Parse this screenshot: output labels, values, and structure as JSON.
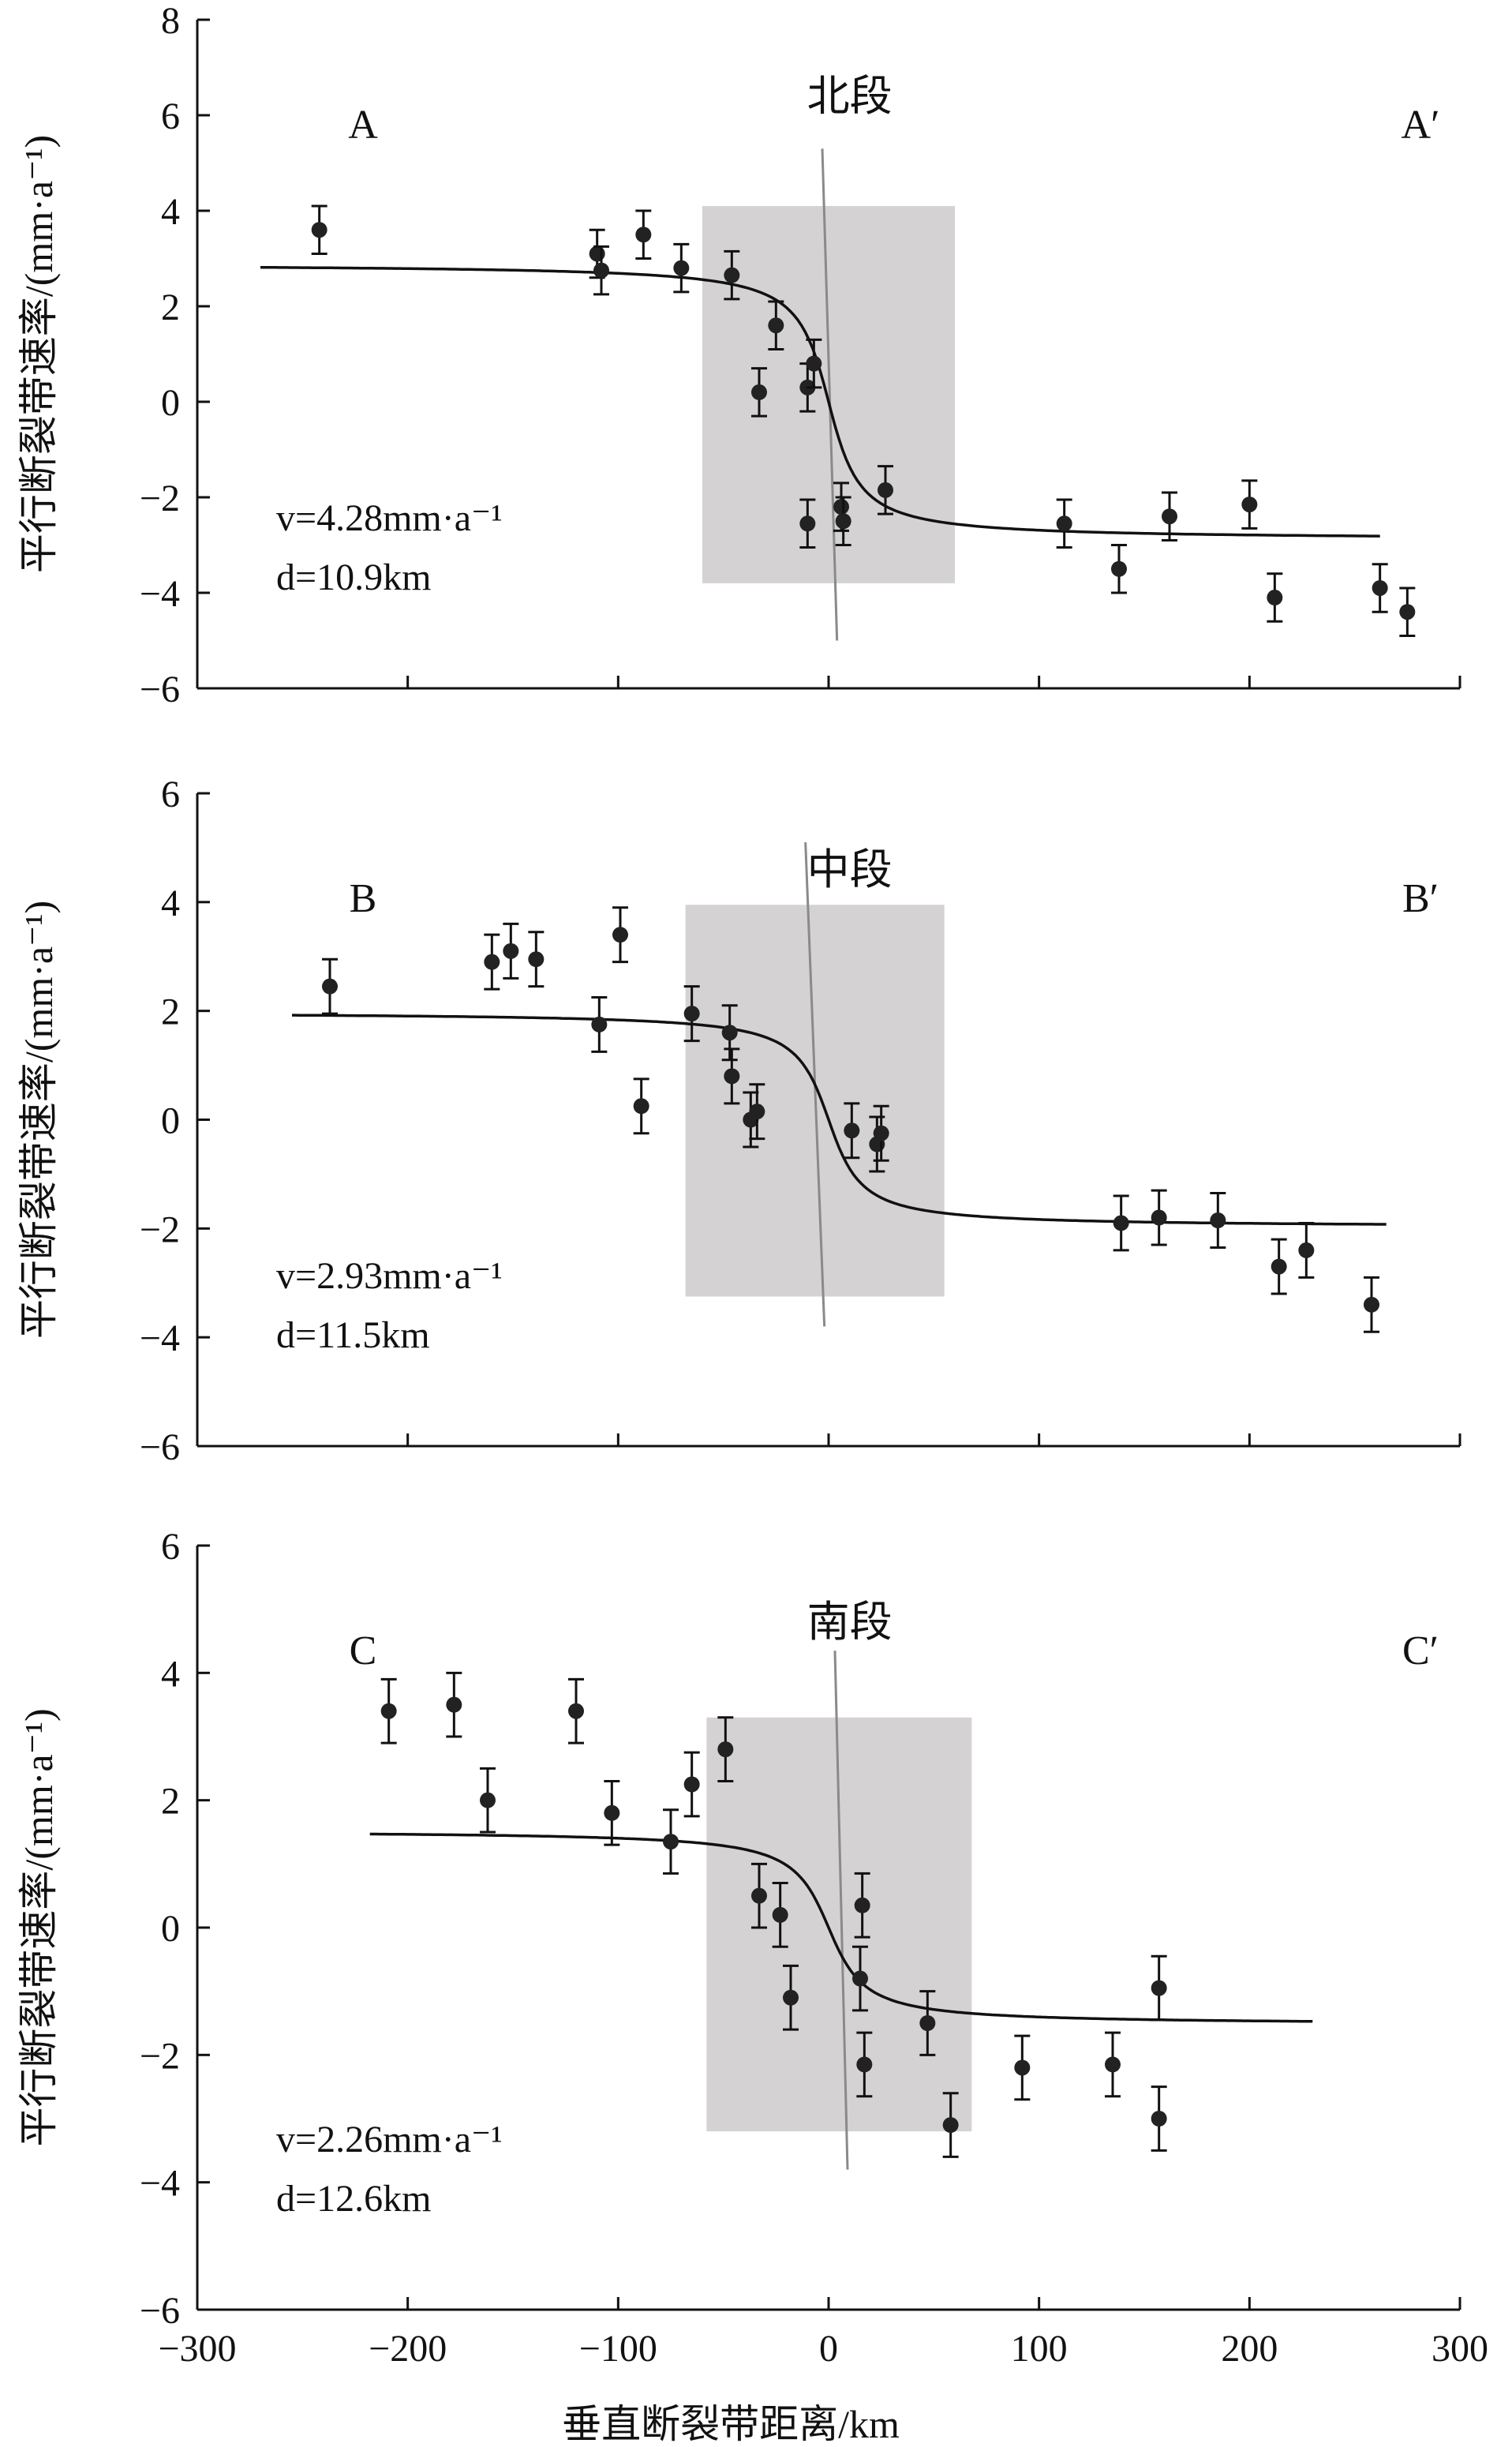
{
  "figure": {
    "xlabel": "垂直断裂带距离/km"
  },
  "chart_data": [
    {
      "type": "scatter",
      "segment": "北段",
      "left_label": "A",
      "right_label": "A′",
      "ylabel": "平行断裂带速率/(mm·a⁻¹)",
      "ylim": [
        -6,
        8
      ],
      "yticks": [
        8,
        6,
        4,
        2,
        0,
        -2,
        -4,
        -6
      ],
      "xlim": [
        -300,
        300
      ],
      "x_tick_labels": false,
      "fit": {
        "v": 4.28,
        "d": 10.9,
        "offset": 0,
        "x_range": [
          -270,
          262
        ],
        "v_text": "v=4.28mm·a⁻¹",
        "d_text": "d=10.9km"
      },
      "shaded_x": [
        -60,
        60
      ],
      "shaded_y": [
        -3.8,
        4.1
      ],
      "fault_line": [
        [
          -3,
          5.3
        ],
        [
          4,
          -5.0
        ]
      ],
      "points": [
        {
          "x": -242,
          "y": 3.6,
          "err": 0.5
        },
        {
          "x": -110,
          "y": 3.1,
          "err": 0.5
        },
        {
          "x": -108,
          "y": 2.75,
          "err": 0.5
        },
        {
          "x": -88,
          "y": 3.5,
          "err": 0.5
        },
        {
          "x": -70,
          "y": 2.8,
          "err": 0.5
        },
        {
          "x": -46,
          "y": 2.65,
          "err": 0.5
        },
        {
          "x": -25,
          "y": 1.6,
          "err": 0.5
        },
        {
          "x": -33,
          "y": 0.2,
          "err": 0.5
        },
        {
          "x": -10,
          "y": 0.3,
          "err": 0.5
        },
        {
          "x": -7,
          "y": 0.8,
          "err": 0.5
        },
        {
          "x": -10,
          "y": -2.55,
          "err": 0.5
        },
        {
          "x": 6,
          "y": -2.2,
          "err": 0.5
        },
        {
          "x": 7,
          "y": -2.5,
          "err": 0.5
        },
        {
          "x": 27,
          "y": -1.85,
          "err": 0.5
        },
        {
          "x": 112,
          "y": -2.55,
          "err": 0.5
        },
        {
          "x": 138,
          "y": -3.5,
          "err": 0.5
        },
        {
          "x": 162,
          "y": -2.4,
          "err": 0.5
        },
        {
          "x": 200,
          "y": -2.15,
          "err": 0.5
        },
        {
          "x": 212,
          "y": -4.1,
          "err": 0.5
        },
        {
          "x": 262,
          "y": -3.9,
          "err": 0.5
        },
        {
          "x": 275,
          "y": -4.4,
          "err": 0.5
        }
      ]
    },
    {
      "type": "scatter",
      "segment": "中段",
      "left_label": "B",
      "right_label": "B′",
      "ylabel": "平行断裂带速率/(mm·a⁻¹)",
      "ylim": [
        -6,
        6
      ],
      "yticks": [
        6,
        4,
        2,
        0,
        -2,
        -4,
        -6
      ],
      "xlim": [
        -300,
        300
      ],
      "x_tick_labels": false,
      "fit": {
        "v": 2.93,
        "d": 11.5,
        "offset": 0,
        "x_range": [
          -255,
          265
        ],
        "v_text": "v=2.93mm·a⁻¹",
        "d_text": "d=11.5km"
      },
      "shaded_x": [
        -68,
        55
      ],
      "shaded_y": [
        -3.25,
        3.95
      ],
      "fault_line": [
        [
          -11,
          5.1
        ],
        [
          -2,
          -3.8
        ]
      ],
      "points": [
        {
          "x": -237,
          "y": 2.45,
          "err": 0.5
        },
        {
          "x": -160,
          "y": 2.9,
          "err": 0.5
        },
        {
          "x": -151,
          "y": 3.1,
          "err": 0.5
        },
        {
          "x": -139,
          "y": 2.95,
          "err": 0.5
        },
        {
          "x": -109,
          "y": 1.75,
          "err": 0.5
        },
        {
          "x": -99,
          "y": 3.4,
          "err": 0.5
        },
        {
          "x": -89,
          "y": 0.25,
          "err": 0.5
        },
        {
          "x": -65,
          "y": 1.95,
          "err": 0.5
        },
        {
          "x": -47,
          "y": 1.6,
          "err": 0.5
        },
        {
          "x": -46,
          "y": 0.8,
          "err": 0.5
        },
        {
          "x": -37,
          "y": 0.0,
          "err": 0.5
        },
        {
          "x": -34,
          "y": 0.15,
          "err": 0.5
        },
        {
          "x": 11,
          "y": -0.2,
          "err": 0.5
        },
        {
          "x": 23,
          "y": -0.45,
          "err": 0.5
        },
        {
          "x": 25,
          "y": -0.25,
          "err": 0.5
        },
        {
          "x": 139,
          "y": -1.9,
          "err": 0.5
        },
        {
          "x": 157,
          "y": -1.8,
          "err": 0.5
        },
        {
          "x": 185,
          "y": -1.85,
          "err": 0.5
        },
        {
          "x": 214,
          "y": -2.7,
          "err": 0.5
        },
        {
          "x": 227,
          "y": -2.4,
          "err": 0.5
        },
        {
          "x": 258,
          "y": -3.4,
          "err": 0.5
        }
      ]
    },
    {
      "type": "scatter",
      "segment": "南段",
      "left_label": "C",
      "right_label": "C′",
      "ylabel": "平行断裂带速率/(mm·a⁻¹)",
      "ylim": [
        -6,
        6
      ],
      "yticks": [
        6,
        4,
        2,
        0,
        -2,
        -4,
        -6
      ],
      "xlim": [
        -300,
        300
      ],
      "x_tick_labels": true,
      "xticks": [
        -300,
        -200,
        -100,
        0,
        100,
        200,
        300
      ],
      "xtick_text": [
        "−300",
        "−200",
        "−100",
        "0",
        "100",
        "200",
        "300"
      ],
      "fit": {
        "v": 2.26,
        "d": 12.6,
        "offset": 0,
        "x_range": [
          -218,
          230
        ],
        "v_text": "v=2.26mm·a⁻¹",
        "d_text": "d=12.6km"
      },
      "shaded_x": [
        -58,
        68
      ],
      "shaded_y": [
        -3.2,
        3.3
      ],
      "fault_line": [
        [
          3,
          4.35
        ],
        [
          9,
          -3.8
        ]
      ],
      "points": [
        {
          "x": -209,
          "y": 3.4,
          "err": 0.5
        },
        {
          "x": -178,
          "y": 3.5,
          "err": 0.5
        },
        {
          "x": -162,
          "y": 2.0,
          "err": 0.5
        },
        {
          "x": -120,
          "y": 3.4,
          "err": 0.5
        },
        {
          "x": -103,
          "y": 1.8,
          "err": 0.5
        },
        {
          "x": -75,
          "y": 1.35,
          "err": 0.5
        },
        {
          "x": -65,
          "y": 2.25,
          "err": 0.5
        },
        {
          "x": -49,
          "y": 2.8,
          "err": 0.5
        },
        {
          "x": -33,
          "y": 0.5,
          "err": 0.5
        },
        {
          "x": -23,
          "y": 0.2,
          "err": 0.5
        },
        {
          "x": -18,
          "y": -1.1,
          "err": 0.5
        },
        {
          "x": 16,
          "y": 0.35,
          "err": 0.5
        },
        {
          "x": 15,
          "y": -0.8,
          "err": 0.5
        },
        {
          "x": 17,
          "y": -2.15,
          "err": 0.5
        },
        {
          "x": 47,
          "y": -1.5,
          "err": 0.5
        },
        {
          "x": 58,
          "y": -3.1,
          "err": 0.5
        },
        {
          "x": 92,
          "y": -2.2,
          "err": 0.5
        },
        {
          "x": 135,
          "y": -2.15,
          "err": 0.5
        },
        {
          "x": 157,
          "y": -0.95,
          "err": 0.5
        },
        {
          "x": 157,
          "y": -3.0,
          "err": 0.5
        }
      ]
    }
  ]
}
